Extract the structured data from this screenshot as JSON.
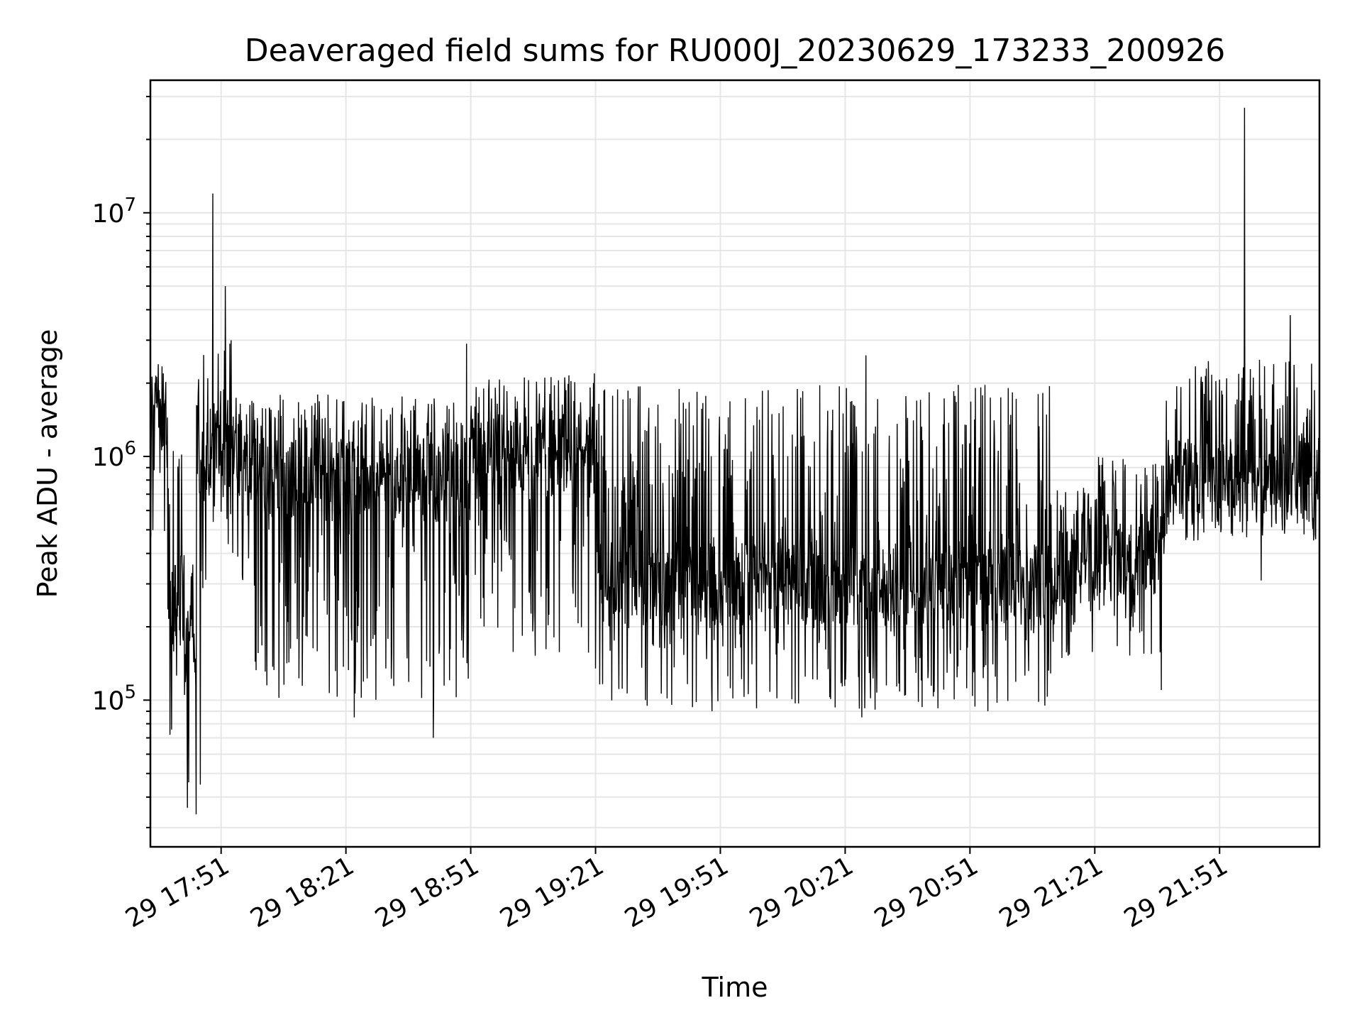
{
  "chart_data": {
    "type": "line",
    "title": "Deaveraged field sums for RU000J_20230629_173233_200926",
    "xlabel": "Time",
    "ylabel": "Peak ADU - average",
    "yscale": "log",
    "ylim": [
      25000,
      35000000
    ],
    "xlim": [
      "2023-06-29 17:34",
      "2023-06-29 22:15"
    ],
    "grid": true,
    "x_ticks": [
      {
        "time": "2023-06-29 17:51",
        "label": "29 17:51"
      },
      {
        "time": "2023-06-29 18:21",
        "label": "29 18:21"
      },
      {
        "time": "2023-06-29 18:51",
        "label": "29 18:51"
      },
      {
        "time": "2023-06-29 19:21",
        "label": "29 19:21"
      },
      {
        "time": "2023-06-29 19:51",
        "label": "29 19:51"
      },
      {
        "time": "2023-06-29 20:21",
        "label": "29 20:21"
      },
      {
        "time": "2023-06-29 20:51",
        "label": "29 20:51"
      },
      {
        "time": "2023-06-29 21:21",
        "label": "29 21:21"
      },
      {
        "time": "2023-06-29 21:51",
        "label": "29 21:51"
      }
    ],
    "y_ticks": [
      {
        "value": 100000,
        "base": "10",
        "exp": "5"
      },
      {
        "value": 1000000,
        "base": "10",
        "exp": "6"
      },
      {
        "value": 10000000,
        "base": "10",
        "exp": "7"
      }
    ],
    "series": [
      {
        "color": "#000000",
        "segments": [
          {
            "start": "2023-06-29 17:34",
            "end": "2023-06-29 17:38",
            "typical": 1500000,
            "low": 450000,
            "high": 2400000
          },
          {
            "start": "2023-06-29 17:38",
            "end": "2023-06-29 17:42",
            "typical": 250000,
            "low": 60000,
            "high": 1500000
          },
          {
            "start": "2023-06-29 17:42",
            "end": "2023-06-29 17:45",
            "typical": 150000,
            "low": 35000,
            "high": 400000
          },
          {
            "start": "2023-06-29 17:45",
            "end": "2023-06-29 17:49",
            "typical": 850000,
            "low": 200000,
            "high": 3000000
          },
          {
            "start": "2023-06-29 17:49",
            "end": "2023-06-29 17:55",
            "typical": 1100000,
            "low": 400000,
            "high": 3000000
          },
          {
            "start": "2023-06-29 17:55",
            "end": "2023-06-29 18:51",
            "typical": 800000,
            "low": 100000,
            "high": 1800000
          },
          {
            "start": "2023-06-29 18:51",
            "end": "2023-06-29 19:21",
            "typical": 1000000,
            "low": 150000,
            "high": 2200000
          },
          {
            "start": "2023-06-29 19:21",
            "end": "2023-06-29 21:12",
            "typical": 300000,
            "low": 90000,
            "high": 2000000
          },
          {
            "start": "2023-06-29 21:12",
            "end": "2023-06-29 21:21",
            "typical": 350000,
            "low": 130000,
            "high": 800000
          },
          {
            "start": "2023-06-29 21:21",
            "end": "2023-06-29 21:38",
            "typical": 400000,
            "low": 150000,
            "high": 1000000
          },
          {
            "start": "2023-06-29 21:38",
            "end": "2023-06-29 22:15",
            "typical": 800000,
            "low": 450000,
            "high": 2500000
          }
        ],
        "spikes": [
          {
            "time": "2023-06-29 17:45",
            "value": 34000
          },
          {
            "time": "2023-06-29 17:46",
            "value": 45000
          },
          {
            "time": "2023-06-29 17:49",
            "value": 12000000
          },
          {
            "time": "2023-06-29 17:52",
            "value": 5000000
          },
          {
            "time": "2023-06-29 18:02",
            "value": 115000
          },
          {
            "time": "2023-06-29 18:23",
            "value": 85000
          },
          {
            "time": "2023-06-29 18:42",
            "value": 70000
          },
          {
            "time": "2023-06-29 18:50",
            "value": 2900000
          },
          {
            "time": "2023-06-29 19:33",
            "value": 100000
          },
          {
            "time": "2023-06-29 19:49",
            "value": 90000
          },
          {
            "time": "2023-06-29 20:26",
            "value": 2600000
          },
          {
            "time": "2023-06-29 20:25",
            "value": 85000
          },
          {
            "time": "2023-06-29 21:09",
            "value": 95000
          },
          {
            "time": "2023-06-29 21:37",
            "value": 110000
          },
          {
            "time": "2023-06-29 21:57",
            "value": 27000000
          },
          {
            "time": "2023-06-29 22:08",
            "value": 3800000
          },
          {
            "time": "2023-06-29 22:01",
            "value": 310000
          }
        ]
      }
    ]
  }
}
